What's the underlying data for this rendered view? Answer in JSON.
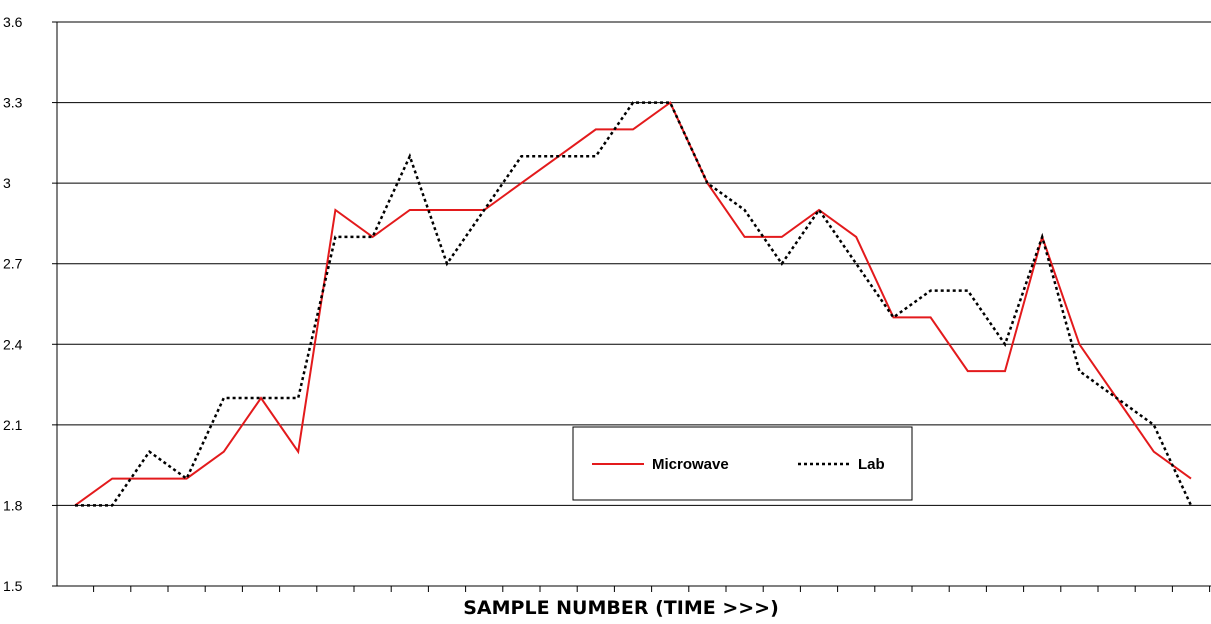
{
  "chart_data": {
    "type": "line",
    "title": "",
    "xlabel": "SAMPLE NUMBER (TIME >>>)",
    "ylabel": "",
    "ylim": [
      1.5,
      3.6
    ],
    "yticks": [
      "1.5",
      "1.8",
      "2.1",
      "2.4",
      "2.7",
      "3",
      "3.3",
      "3.6"
    ],
    "ytick_values": [
      1.5,
      1.8,
      2.1,
      2.4,
      2.7,
      3.0,
      3.3,
      3.6
    ],
    "grid": "horizontal",
    "legend_position": "bottom-center",
    "x": [
      1,
      2,
      3,
      4,
      5,
      6,
      7,
      8,
      9,
      10,
      11,
      12,
      13,
      14,
      15,
      16,
      17,
      18,
      19,
      20,
      21,
      22,
      23,
      24,
      25,
      26,
      27,
      28,
      29,
      30,
      31
    ],
    "series": [
      {
        "name": "Microwave",
        "color": "#e31a1c",
        "style": "solid",
        "values": [
          1.8,
          1.9,
          1.9,
          1.9,
          2.0,
          2.2,
          2.0,
          2.9,
          2.8,
          2.9,
          2.9,
          2.9,
          3.0,
          3.1,
          3.2,
          3.2,
          3.3,
          3.0,
          2.8,
          2.8,
          2.9,
          2.8,
          2.5,
          2.5,
          2.3,
          2.3,
          2.8,
          2.4,
          2.2,
          2.0,
          1.9
        ]
      },
      {
        "name": "Lab",
        "color": "#000000",
        "style": "dotted",
        "values": [
          1.8,
          1.8,
          2.0,
          1.9,
          2.2,
          2.2,
          2.2,
          2.8,
          2.8,
          3.1,
          2.7,
          2.9,
          3.1,
          3.1,
          3.1,
          3.3,
          3.3,
          3.0,
          2.9,
          2.7,
          2.9,
          2.7,
          2.5,
          2.6,
          2.6,
          2.4,
          2.8,
          2.3,
          2.2,
          2.1,
          1.8
        ]
      }
    ]
  }
}
